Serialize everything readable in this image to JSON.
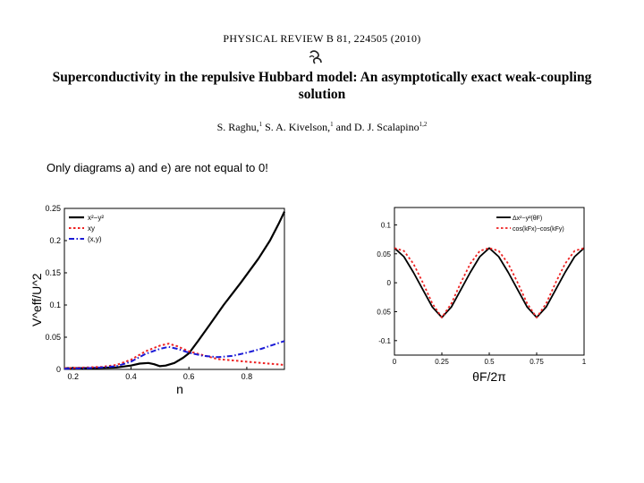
{
  "header": {
    "journal": "PHYSICAL REVIEW B 81, 224505 (2010)",
    "title_line1": "Superconductivity in the repulsive Hubbard model: An asymptotically exact weak-coupling",
    "title_line2": "solution",
    "authors": [
      {
        "name": "S. Raghu,",
        "aff": "1"
      },
      {
        "name": "S. A. Kivelson,",
        "aff": "1"
      },
      {
        "name": "and D. J. Scalapino",
        "aff": "1,2"
      }
    ]
  },
  "note": "Only diagrams a) and e) are not equal to 0!",
  "chart_data": [
    {
      "type": "line",
      "xlabel": "n",
      "ylabel": "V^eff/U^2",
      "xlim": [
        0.17,
        0.93
      ],
      "ylim": [
        0,
        0.25
      ],
      "x_ticks": [
        "0.2",
        "0.4",
        "0.6",
        "0.8"
      ],
      "y_ticks": [
        "0",
        "0.05",
        "0.1",
        "0.15",
        "0.2",
        "0.25"
      ],
      "legend_position": "top-left",
      "series": [
        {
          "name": "x²−y²",
          "color": "#000000",
          "style": "solid",
          "x": [
            0.17,
            0.25,
            0.35,
            0.4,
            0.43,
            0.46,
            0.48,
            0.5,
            0.52,
            0.55,
            0.58,
            0.6,
            0.63,
            0.67,
            0.72,
            0.78,
            0.84,
            0.88,
            0.91,
            0.93
          ],
          "y": [
            0.002,
            0.002,
            0.003,
            0.006,
            0.009,
            0.01,
            0.008,
            0.005,
            0.006,
            0.01,
            0.018,
            0.025,
            0.043,
            0.068,
            0.1,
            0.135,
            0.172,
            0.2,
            0.226,
            0.245
          ]
        },
        {
          "name": "xy",
          "color": "#ee2222",
          "style": "dotted",
          "x": [
            0.17,
            0.25,
            0.3,
            0.35,
            0.4,
            0.45,
            0.5,
            0.53,
            0.56,
            0.6,
            0.65,
            0.7,
            0.75,
            0.8,
            0.85,
            0.93
          ],
          "y": [
            0.002,
            0.003,
            0.004,
            0.007,
            0.015,
            0.028,
            0.037,
            0.04,
            0.036,
            0.028,
            0.022,
            0.016,
            0.014,
            0.012,
            0.01,
            0.007
          ]
        },
        {
          "name": "(x,y)",
          "color": "#1a1ad6",
          "style": "dashdot",
          "x": [
            0.17,
            0.25,
            0.3,
            0.35,
            0.4,
            0.45,
            0.5,
            0.53,
            0.56,
            0.6,
            0.65,
            0.7,
            0.75,
            0.8,
            0.85,
            0.93
          ],
          "y": [
            0.001,
            0.002,
            0.003,
            0.005,
            0.012,
            0.024,
            0.032,
            0.035,
            0.032,
            0.026,
            0.021,
            0.019,
            0.021,
            0.026,
            0.032,
            0.044
          ]
        }
      ]
    },
    {
      "type": "line",
      "xlabel": "θF/2π",
      "xlim": [
        0,
        1
      ],
      "ylim": [
        -0.125,
        0.13
      ],
      "x_ticks": [
        "0",
        "0.25",
        "0.5",
        "0.75",
        "1"
      ],
      "y_ticks": [
        "0.1",
        "0.05",
        "0",
        "0.05",
        "-0.1"
      ],
      "legend_position": "top-right",
      "series": [
        {
          "name": "Δx²−y²(θF)",
          "color": "#000000",
          "style": "solid",
          "x": [
            0,
            0.05,
            0.1,
            0.15,
            0.2,
            0.25,
            0.3,
            0.35,
            0.4,
            0.45,
            0.5,
            0.55,
            0.6,
            0.65,
            0.7,
            0.75,
            0.8,
            0.85,
            0.9,
            0.95,
            1.0
          ],
          "y": [
            0.06,
            0.045,
            0.018,
            -0.012,
            -0.042,
            -0.06,
            -0.042,
            -0.012,
            0.018,
            0.045,
            0.06,
            0.045,
            0.018,
            -0.012,
            -0.042,
            -0.06,
            -0.042,
            -0.012,
            0.018,
            0.045,
            0.06
          ]
        },
        {
          "name": "cos(kFx)−cos(kFy)",
          "color": "#ee2222",
          "style": "dotted",
          "x": [
            0,
            0.05,
            0.1,
            0.15,
            0.2,
            0.25,
            0.3,
            0.35,
            0.4,
            0.45,
            0.5,
            0.55,
            0.6,
            0.65,
            0.7,
            0.75,
            0.8,
            0.85,
            0.9,
            0.95,
            1.0
          ],
          "y": [
            0.06,
            0.055,
            0.033,
            0.0,
            -0.036,
            -0.06,
            -0.036,
            0.0,
            0.033,
            0.055,
            0.06,
            0.055,
            0.033,
            0.0,
            -0.036,
            -0.06,
            -0.036,
            0.0,
            0.033,
            0.055,
            0.06
          ]
        }
      ]
    }
  ]
}
